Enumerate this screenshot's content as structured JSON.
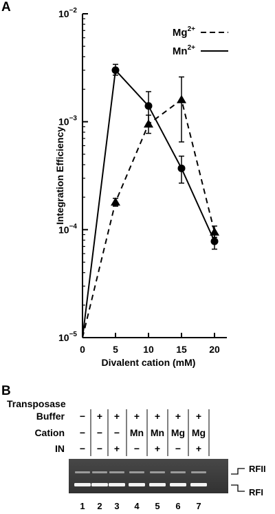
{
  "panel_a_label": "A",
  "panel_b_label": "B",
  "chart_data": {
    "type": "line",
    "xlabel": "Divalent cation (mM)",
    "ylabel": "Integration Efficiency",
    "y_scale": "log",
    "xlim": [
      0,
      20
    ],
    "ylim": [
      1e-05,
      0.01
    ],
    "x_ticks": [
      "0",
      "5",
      "10",
      "15",
      "20"
    ],
    "y_ticks": [
      {
        "base": "10",
        "exp": "−2",
        "value": 0.01
      },
      {
        "base": "10",
        "exp": "−3",
        "value": 0.001
      },
      {
        "base": "10",
        "exp": "−4",
        "value": 0.0001
      },
      {
        "base": "10",
        "exp": "−5",
        "value": 1e-05
      }
    ],
    "legend_position": "top-right",
    "series": [
      {
        "name": "Mg",
        "name_sup": "2+",
        "style": "dashed",
        "marker": "triangle",
        "x": [
          0,
          5,
          10,
          15,
          20
        ],
        "y": [
          1e-05,
          0.00018,
          0.00095,
          0.0016,
          9.5e-05
        ],
        "err_low": [
          null,
          0.000165,
          0.00078,
          0.00065,
          8.5e-05
        ],
        "err_high": [
          null,
          0.000195,
          0.00115,
          0.0026,
          0.000108
        ]
      },
      {
        "name": "Mn",
        "name_sup": "2+",
        "style": "solid",
        "marker": "circle",
        "x": [
          0,
          5,
          10,
          15,
          20
        ],
        "y": [
          1e-05,
          0.003,
          0.0014,
          0.00037,
          7.8e-05
        ],
        "err_low": [
          null,
          0.0027,
          0.00095,
          0.00027,
          6.6e-05
        ],
        "err_high": [
          null,
          0.0034,
          0.0019,
          0.00048,
          9e-05
        ]
      }
    ]
  },
  "gel_table": {
    "title": "Transposase",
    "rows": [
      {
        "label": "Buffer",
        "cells": [
          "−",
          "+",
          "+",
          "+",
          "+",
          "+",
          "+"
        ]
      },
      {
        "label": "Cation",
        "cells": [
          "−",
          "−",
          "−",
          "Mn",
          "Mn",
          "Mg",
          "Mg"
        ]
      },
      {
        "label": "IN",
        "cells": [
          "−",
          "−",
          "+",
          "−",
          "+",
          "−",
          "+"
        ]
      }
    ],
    "lanes": [
      "1",
      "2",
      "3",
      "4",
      "5",
      "6",
      "7"
    ],
    "band_labels": [
      "RFII",
      "RFI"
    ]
  }
}
